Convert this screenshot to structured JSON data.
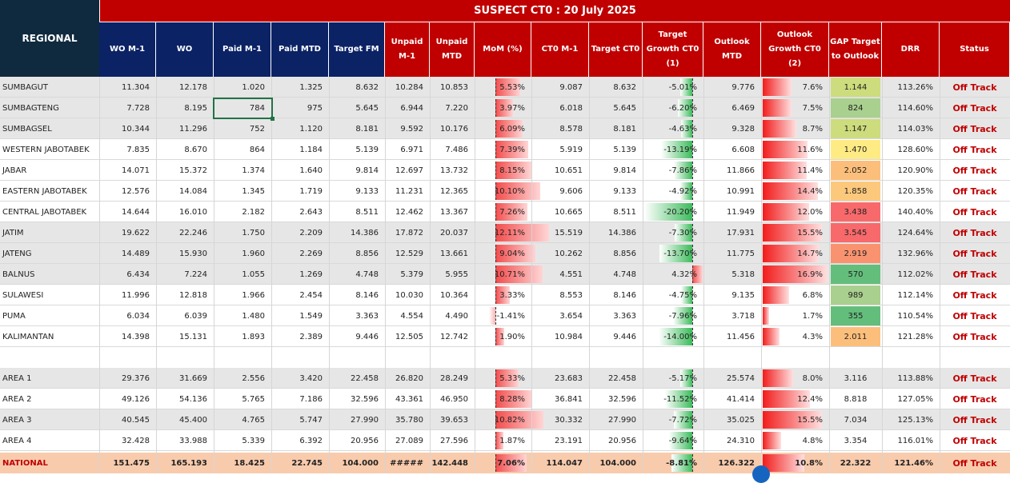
{
  "title": "SUSPECT CT0 : 20 July 2025",
  "corner_label": "REGIONAL",
  "columns": [
    {
      "label": "WO M-1",
      "style": "navy"
    },
    {
      "label": "WO",
      "style": "navy"
    },
    {
      "label": "Paid M-1",
      "style": "navy"
    },
    {
      "label": "Paid MTD",
      "style": "navy"
    },
    {
      "label": "Target FM",
      "style": "navy"
    },
    {
      "label": "Unpaid M-1",
      "style": "red"
    },
    {
      "label": "Unpaid MTD",
      "style": "red"
    },
    {
      "label": "MoM (%)",
      "style": "red"
    },
    {
      "label": "CT0 M-1",
      "style": "red"
    },
    {
      "label": "Target CT0",
      "style": "red"
    },
    {
      "label": "Target Growth CT0 (1)",
      "style": "red"
    },
    {
      "label": "Outlook MTD",
      "style": "red"
    },
    {
      "label": "Outlook Growth CT0 (2)",
      "style": "red"
    },
    {
      "label": "GAP Target to Outlook",
      "style": "red"
    },
    {
      "label": "DRR",
      "style": "red"
    },
    {
      "label": "Status",
      "style": "red"
    }
  ],
  "colors": {
    "gap_green": "#63be7b",
    "gap_lightgreen": "#a9d08e",
    "gap_yellowgreen": "#cddc7c",
    "gap_yellow": "#ffeb84",
    "gap_orange": "#fcbf7b",
    "gap_red": "#f8696b",
    "national_bg": "#f8cbad",
    "band_gray": "#e7e6e6"
  },
  "rows": [
    {
      "name": "SUMBAGUT",
      "band": "gray",
      "wo_m1": "11.304",
      "wo": "12.178",
      "paid_m1": "1.020",
      "paid_mtd": "1.325",
      "target_fm": "8.632",
      "unpaid_m1": "10.284",
      "unpaid_mtd": "10.853",
      "mom": "5.53%",
      "mom_val": 5.53,
      "ct0_m1": "9.087",
      "target_ct0": "8.632",
      "target_growth": "-5.01%",
      "tg_val": -5.01,
      "outlook_mtd": "9.776",
      "outlook_growth": "7.6%",
      "og_val": 7.6,
      "gap": "1.144",
      "gap_color": "#cddc7c",
      "drr": "113.26%",
      "status": "Off Track"
    },
    {
      "name": "SUMBAGTENG",
      "band": "gray",
      "wo_m1": "7.728",
      "wo": "8.195",
      "paid_m1": "784",
      "paid_mtd": "975",
      "target_fm": "5.645",
      "unpaid_m1": "6.944",
      "unpaid_mtd": "7.220",
      "mom": "3.97%",
      "mom_val": 3.97,
      "ct0_m1": "6.018",
      "target_ct0": "5.645",
      "target_growth": "-6.20%",
      "tg_val": -6.2,
      "outlook_mtd": "6.469",
      "outlook_growth": "7.5%",
      "og_val": 7.5,
      "gap": "824",
      "gap_color": "#a9d08e",
      "drr": "114.60%",
      "status": "Off Track"
    },
    {
      "name": "SUMBAGSEL",
      "band": "gray",
      "wo_m1": "10.344",
      "wo": "11.296",
      "paid_m1": "752",
      "paid_mtd": "1.120",
      "target_fm": "8.181",
      "unpaid_m1": "9.592",
      "unpaid_mtd": "10.176",
      "mom": "6.09%",
      "mom_val": 6.09,
      "ct0_m1": "8.578",
      "target_ct0": "8.181",
      "target_growth": "-4.63%",
      "tg_val": -4.63,
      "outlook_mtd": "9.328",
      "outlook_growth": "8.7%",
      "og_val": 8.7,
      "gap": "1.147",
      "gap_color": "#cddc7c",
      "drr": "114.03%",
      "status": "Off Track"
    },
    {
      "name": "WESTERN JABOTABEK",
      "band": "white",
      "wo_m1": "7.835",
      "wo": "8.670",
      "paid_m1": "864",
      "paid_mtd": "1.184",
      "target_fm": "5.139",
      "unpaid_m1": "6.971",
      "unpaid_mtd": "7.486",
      "mom": "7.39%",
      "mom_val": 7.39,
      "ct0_m1": "5.919",
      "target_ct0": "5.139",
      "target_growth": "-13.19%",
      "tg_val": -13.19,
      "outlook_mtd": "6.608",
      "outlook_growth": "11.6%",
      "og_val": 11.6,
      "gap": "1.470",
      "gap_color": "#ffeb84",
      "drr": "128.60%",
      "status": "Off Track"
    },
    {
      "name": "JABAR",
      "band": "white",
      "wo_m1": "14.071",
      "wo": "15.372",
      "paid_m1": "1.374",
      "paid_mtd": "1.640",
      "target_fm": "9.814",
      "unpaid_m1": "12.697",
      "unpaid_mtd": "13.732",
      "mom": "8.15%",
      "mom_val": 8.15,
      "ct0_m1": "10.651",
      "target_ct0": "9.814",
      "target_growth": "-7.86%",
      "tg_val": -7.86,
      "outlook_mtd": "11.866",
      "outlook_growth": "11.4%",
      "og_val": 11.4,
      "gap": "2.052",
      "gap_color": "#fcbf7b",
      "drr": "120.90%",
      "status": "Off Track"
    },
    {
      "name": "EASTERN JABOTABEK",
      "band": "white",
      "wo_m1": "12.576",
      "wo": "14.084",
      "paid_m1": "1.345",
      "paid_mtd": "1.719",
      "target_fm": "9.133",
      "unpaid_m1": "11.231",
      "unpaid_mtd": "12.365",
      "mom": "10.10%",
      "mom_val": 10.1,
      "ct0_m1": "9.606",
      "target_ct0": "9.133",
      "target_growth": "-4.92%",
      "tg_val": -4.92,
      "outlook_mtd": "10.991",
      "outlook_growth": "14.4%",
      "og_val": 14.4,
      "gap": "1.858",
      "gap_color": "#fcc97c",
      "drr": "120.35%",
      "status": "Off Track"
    },
    {
      "name": "CENTRAL JABOTABEK",
      "band": "white",
      "wo_m1": "14.644",
      "wo": "16.010",
      "paid_m1": "2.182",
      "paid_mtd": "2.643",
      "target_fm": "8.511",
      "unpaid_m1": "12.462",
      "unpaid_mtd": "13.367",
      "mom": "7.26%",
      "mom_val": 7.26,
      "ct0_m1": "10.665",
      "target_ct0": "8.511",
      "target_growth": "-20.20%",
      "tg_val": -20.2,
      "outlook_mtd": "11.949",
      "outlook_growth": "12.0%",
      "og_val": 12.0,
      "gap": "3.438",
      "gap_color": "#f8696b",
      "drr": "140.40%",
      "status": "Off Track"
    },
    {
      "name": "JATIM",
      "band": "gray",
      "wo_m1": "19.622",
      "wo": "22.246",
      "paid_m1": "1.750",
      "paid_mtd": "2.209",
      "target_fm": "14.386",
      "unpaid_m1": "17.872",
      "unpaid_mtd": "20.037",
      "mom": "12.11%",
      "mom_val": 12.11,
      "ct0_m1": "15.519",
      "target_ct0": "14.386",
      "target_growth": "-7.30%",
      "tg_val": -7.3,
      "outlook_mtd": "17.931",
      "outlook_growth": "15.5%",
      "og_val": 15.5,
      "gap": "3.545",
      "gap_color": "#f8696b",
      "drr": "124.64%",
      "status": "Off Track"
    },
    {
      "name": "JATENG",
      "band": "gray",
      "wo_m1": "14.489",
      "wo": "15.930",
      "paid_m1": "1.960",
      "paid_mtd": "2.269",
      "target_fm": "8.856",
      "unpaid_m1": "12.529",
      "unpaid_mtd": "13.661",
      "mom": "9.04%",
      "mom_val": 9.04,
      "ct0_m1": "10.262",
      "target_ct0": "8.856",
      "target_growth": "-13.70%",
      "tg_val": -13.7,
      "outlook_mtd": "11.775",
      "outlook_growth": "14.7%",
      "og_val": 14.7,
      "gap": "2.919",
      "gap_color": "#f9926f",
      "drr": "132.96%",
      "status": "Off Track"
    },
    {
      "name": "BALNUS",
      "band": "gray",
      "wo_m1": "6.434",
      "wo": "7.224",
      "paid_m1": "1.055",
      "paid_mtd": "1.269",
      "target_fm": "4.748",
      "unpaid_m1": "5.379",
      "unpaid_mtd": "5.955",
      "mom": "10.71%",
      "mom_val": 10.71,
      "ct0_m1": "4.551",
      "target_ct0": "4.748",
      "target_growth": "4.32%",
      "tg_val": 4.32,
      "outlook_mtd": "5.318",
      "outlook_growth": "16.9%",
      "og_val": 16.9,
      "gap": "570",
      "gap_color": "#63be7b",
      "drr": "112.02%",
      "status": "Off Track"
    },
    {
      "name": "SULAWESI",
      "band": "white",
      "wo_m1": "11.996",
      "wo": "12.818",
      "paid_m1": "1.966",
      "paid_mtd": "2.454",
      "target_fm": "8.146",
      "unpaid_m1": "10.030",
      "unpaid_mtd": "10.364",
      "mom": "3.33%",
      "mom_val": 3.33,
      "ct0_m1": "8.553",
      "target_ct0": "8.146",
      "target_growth": "-4.75%",
      "tg_val": -4.75,
      "outlook_mtd": "9.135",
      "outlook_growth": "6.8%",
      "og_val": 6.8,
      "gap": "989",
      "gap_color": "#a9d08e",
      "drr": "112.14%",
      "status": "Off Track"
    },
    {
      "name": "PUMA",
      "band": "white",
      "wo_m1": "6.034",
      "wo": "6.039",
      "paid_m1": "1.480",
      "paid_mtd": "1.549",
      "target_fm": "3.363",
      "unpaid_m1": "4.554",
      "unpaid_mtd": "4.490",
      "mom": "-1.41%",
      "mom_val": -1.41,
      "ct0_m1": "3.654",
      "target_ct0": "3.363",
      "target_growth": "-7.96%",
      "tg_val": -7.96,
      "outlook_mtd": "3.718",
      "outlook_growth": "1.7%",
      "og_val": 1.7,
      "gap": "355",
      "gap_color": "#63be7b",
      "drr": "110.54%",
      "status": "Off Track"
    },
    {
      "name": "KALIMANTAN",
      "band": "white",
      "wo_m1": "14.398",
      "wo": "15.131",
      "paid_m1": "1.893",
      "paid_mtd": "2.389",
      "target_fm": "9.446",
      "unpaid_m1": "12.505",
      "unpaid_mtd": "12.742",
      "mom": "1.90%",
      "mom_val": 1.9,
      "ct0_m1": "10.984",
      "target_ct0": "9.446",
      "target_growth": "-14.00%",
      "tg_val": -14.0,
      "outlook_mtd": "11.456",
      "outlook_growth": "4.3%",
      "og_val": 4.3,
      "gap": "2.011",
      "gap_color": "#fcbf7b",
      "drr": "121.28%",
      "status": "Off Track"
    }
  ],
  "area_rows": [
    {
      "name": "AREA 1",
      "band": "gray",
      "wo_m1": "29.376",
      "wo": "31.669",
      "paid_m1": "2.556",
      "paid_mtd": "3.420",
      "target_fm": "22.458",
      "unpaid_m1": "26.820",
      "unpaid_mtd": "28.249",
      "mom": "5.33%",
      "mom_val": 5.33,
      "ct0_m1": "23.683",
      "target_ct0": "22.458",
      "target_growth": "-5.17%",
      "tg_val": -5.17,
      "outlook_mtd": "25.574",
      "outlook_growth": "8.0%",
      "og_val": 8.0,
      "gap": "3.116",
      "drr": "113.88%",
      "status": "Off Track"
    },
    {
      "name": "AREA 2",
      "band": "white",
      "wo_m1": "49.126",
      "wo": "54.136",
      "paid_m1": "5.765",
      "paid_mtd": "7.186",
      "target_fm": "32.596",
      "unpaid_m1": "43.361",
      "unpaid_mtd": "46.950",
      "mom": "8.28%",
      "mom_val": 8.28,
      "ct0_m1": "36.841",
      "target_ct0": "32.596",
      "target_growth": "-11.52%",
      "tg_val": -11.52,
      "outlook_mtd": "41.414",
      "outlook_growth": "12.4%",
      "og_val": 12.4,
      "gap": "8.818",
      "drr": "127.05%",
      "status": "Off Track"
    },
    {
      "name": "AREA 3",
      "band": "gray",
      "wo_m1": "40.545",
      "wo": "45.400",
      "paid_m1": "4.765",
      "paid_mtd": "5.747",
      "target_fm": "27.990",
      "unpaid_m1": "35.780",
      "unpaid_mtd": "39.653",
      "mom": "10.82%",
      "mom_val": 10.82,
      "ct0_m1": "30.332",
      "target_ct0": "27.990",
      "target_growth": "-7.72%",
      "tg_val": -7.72,
      "outlook_mtd": "35.025",
      "outlook_growth": "15.5%",
      "og_val": 15.5,
      "gap": "7.034",
      "drr": "125.13%",
      "status": "Off Track"
    },
    {
      "name": "AREA 4",
      "band": "white",
      "wo_m1": "32.428",
      "wo": "33.988",
      "paid_m1": "5.339",
      "paid_mtd": "6.392",
      "target_fm": "20.956",
      "unpaid_m1": "27.089",
      "unpaid_mtd": "27.596",
      "mom": "1.87%",
      "mom_val": 1.87,
      "ct0_m1": "23.191",
      "target_ct0": "20.956",
      "target_growth": "-9.64%",
      "tg_val": -9.64,
      "outlook_mtd": "24.310",
      "outlook_growth": "4.8%",
      "og_val": 4.8,
      "gap": "3.354",
      "drr": "116.01%",
      "status": "Off Track"
    }
  ],
  "national": {
    "name": "NATIONAL",
    "wo_m1": "151.475",
    "wo": "165.193",
    "paid_m1": "18.425",
    "paid_mtd": "22.745",
    "target_fm": "104.000",
    "unpaid_m1": "#####",
    "unpaid_mtd": "142.448",
    "mom": "7.06%",
    "mom_val": 7.06,
    "ct0_m1": "114.047",
    "target_ct0": "104.000",
    "target_growth": "-8.81%",
    "tg_val": -8.81,
    "outlook_mtd": "126.322",
    "outlook_growth": "10.8%",
    "og_val": 10.8,
    "gap": "22.322",
    "drr": "121.46%",
    "status": "Off Track"
  }
}
